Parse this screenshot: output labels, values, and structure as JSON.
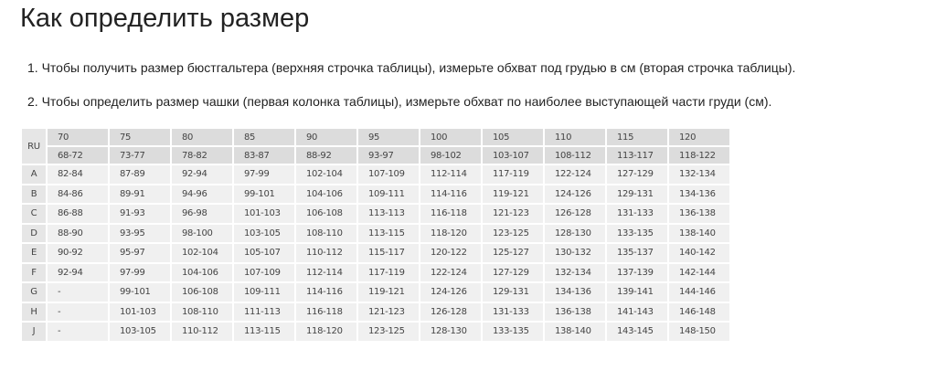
{
  "title": "Как определить размер",
  "steps": [
    "1. Чтобы получить размер бюстгальтера (верхняя строчка таблицы), измерьте обхват под грудью в см (вторая строчка таблицы).",
    "2. Чтобы определить размер чашки (первая колонка таблицы), измерьте обхват по наиболее выступающей части груди (см)."
  ],
  "table": {
    "corner": "RU",
    "sizes": [
      "70",
      "75",
      "80",
      "85",
      "90",
      "95",
      "100",
      "105",
      "110",
      "115",
      "120"
    ],
    "underbust": [
      "68-72",
      "73-77",
      "78-82",
      "83-87",
      "88-92",
      "93-97",
      "98-102",
      "103-107",
      "108-112",
      "113-117",
      "118-122"
    ],
    "rows": [
      {
        "cup": "A",
        "values": [
          "82-84",
          "87-89",
          "92-94",
          "97-99",
          "102-104",
          "107-109",
          "112-114",
          "117-119",
          "122-124",
          "127-129",
          "132-134"
        ]
      },
      {
        "cup": "B",
        "values": [
          "84-86",
          "89-91",
          "94-96",
          "99-101",
          "104-106",
          "109-111",
          "114-116",
          "119-121",
          "124-126",
          "129-131",
          "134-136"
        ]
      },
      {
        "cup": "C",
        "values": [
          "86-88",
          "91-93",
          "96-98",
          "101-103",
          "106-108",
          "113-113",
          "116-118",
          "121-123",
          "126-128",
          "131-133",
          "136-138"
        ]
      },
      {
        "cup": "D",
        "values": [
          "88-90",
          "93-95",
          "98-100",
          "103-105",
          "108-110",
          "113-115",
          "118-120",
          "123-125",
          "128-130",
          "133-135",
          "138-140"
        ]
      },
      {
        "cup": "E",
        "values": [
          "90-92",
          "95-97",
          "102-104",
          "105-107",
          "110-112",
          "115-117",
          "120-122",
          "125-127",
          "130-132",
          "135-137",
          "140-142"
        ]
      },
      {
        "cup": "F",
        "values": [
          "92-94",
          "97-99",
          "104-106",
          "107-109",
          "112-114",
          "117-119",
          "122-124",
          "127-129",
          "132-134",
          "137-139",
          "142-144"
        ]
      },
      {
        "cup": "G",
        "values": [
          "-",
          "99-101",
          "106-108",
          "109-111",
          "114-116",
          "119-121",
          "124-126",
          "129-131",
          "134-136",
          "139-141",
          "144-146"
        ]
      },
      {
        "cup": "H",
        "values": [
          "-",
          "101-103",
          "108-110",
          "111-113",
          "116-118",
          "121-123",
          "126-128",
          "131-133",
          "136-138",
          "141-143",
          "146-148"
        ]
      },
      {
        "cup": "J",
        "values": [
          "-",
          "103-105",
          "110-112",
          "113-115",
          "118-120",
          "123-125",
          "128-130",
          "133-135",
          "138-140",
          "143-145",
          "148-150"
        ]
      }
    ]
  }
}
